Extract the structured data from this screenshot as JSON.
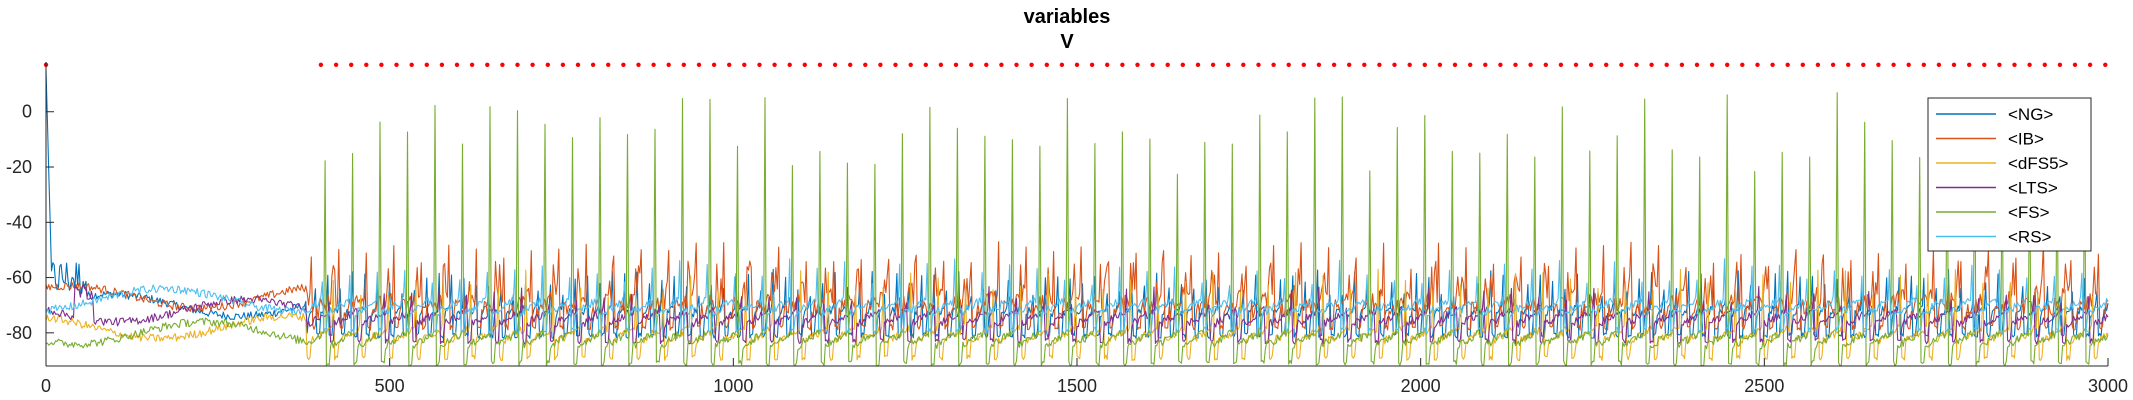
{
  "chart_data": {
    "type": "line",
    "title": "variables",
    "subtitle": "V",
    "xlabel": "",
    "ylabel": "",
    "xlim": [
      0,
      3000
    ],
    "ylim": [
      -92,
      18
    ],
    "xticks": [
      0,
      500,
      1000,
      1500,
      2000,
      2500,
      3000
    ],
    "yticks": [
      0,
      -20,
      -40,
      -60,
      -80
    ],
    "grid": false,
    "legend_position": "top-right",
    "series": [
      {
        "name": "<NG>",
        "color": "#0072BD",
        "baseline": -76,
        "spike_peak": -62,
        "spike_every": 18,
        "spike_offset": 8
      },
      {
        "name": "<IB>",
        "color": "#D95319",
        "baseline": -73,
        "spike_peak": -52,
        "spike_every": 40,
        "spike_offset": 15
      },
      {
        "name": "<dFS5>",
        "color": "#EDB120",
        "baseline": -84,
        "spike_peak": -62,
        "spike_every": 40,
        "spike_offset": 22
      },
      {
        "name": "<LTS>",
        "color": "#7E2F8E",
        "baseline": -78,
        "spike_peak": -68,
        "spike_every": 40,
        "spike_offset": 28
      },
      {
        "name": "<FS>",
        "color": "#77AC30",
        "baseline": -86,
        "spike_peak": -8,
        "spike_every": 40,
        "spike_offset": 35
      },
      {
        "name": "<RS>",
        "color": "#4DBEEE",
        "baseline": -74,
        "spike_peak": -58,
        "spike_every": 40,
        "spike_offset": 38
      }
    ],
    "reference_markers": {
      "color": "#FF0000",
      "y": 17,
      "points_x_start": 400,
      "points_x_end": 3000,
      "points_spacing": 22
    }
  }
}
